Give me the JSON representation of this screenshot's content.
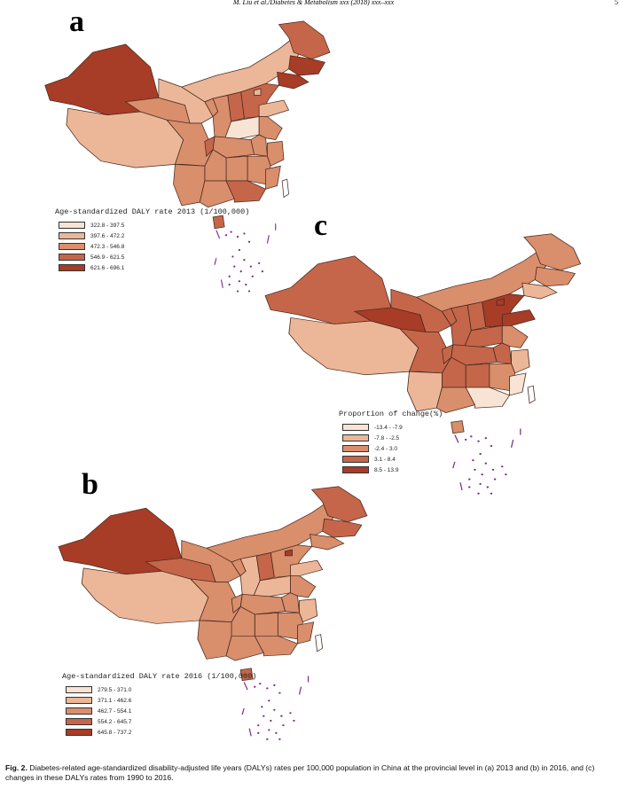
{
  "header": {
    "running_head": "M. Liu et al./Diabetes & Metabolism xxx (2018) xxx–xxx",
    "page_number": "5"
  },
  "colors": {
    "c1": "#f8e4d4",
    "c2": "#ebb798",
    "c3": "#d98e6c",
    "c4": "#c5664a",
    "c5": "#a73c27",
    "border": "#4a2a1e",
    "islands": "#7a2a8c"
  },
  "panels": {
    "a": {
      "letter": "a",
      "legend_title": "Age-standardized DALY rate 2013 (1/100,000)",
      "legend": [
        "322.8 - 397.5",
        "397.6 - 472.2",
        "472.3 - 546.8",
        "546.9 - 621.5",
        "621.6 - 696.1"
      ]
    },
    "b": {
      "letter": "b",
      "legend_title": "Age-standardized DALY rate 2016 (1/100,000)",
      "legend": [
        "279.5 - 371.0",
        "371.1 - 462.6",
        "462.7 - 554.1",
        "554.2 - 645.7",
        "645.8 - 737.2"
      ]
    },
    "c": {
      "letter": "c",
      "legend_title": "Proportion of change(%)",
      "legend": [
        "-13.4 - -7.9",
        "-7.8 - -2.5",
        "-2.4 - 3.0",
        "3.1 - 8.4",
        "8.5 - 13.9"
      ]
    }
  },
  "caption": {
    "label": "Fig. 2.",
    "text": "Diabetes-related age-standardized disability-adjusted life years (DALYs) rates per 100,000 population in China at the provincial level in (a) 2013 and (b) in 2016, and (c) changes in these DALYs rates from 1990 to 2016."
  }
}
